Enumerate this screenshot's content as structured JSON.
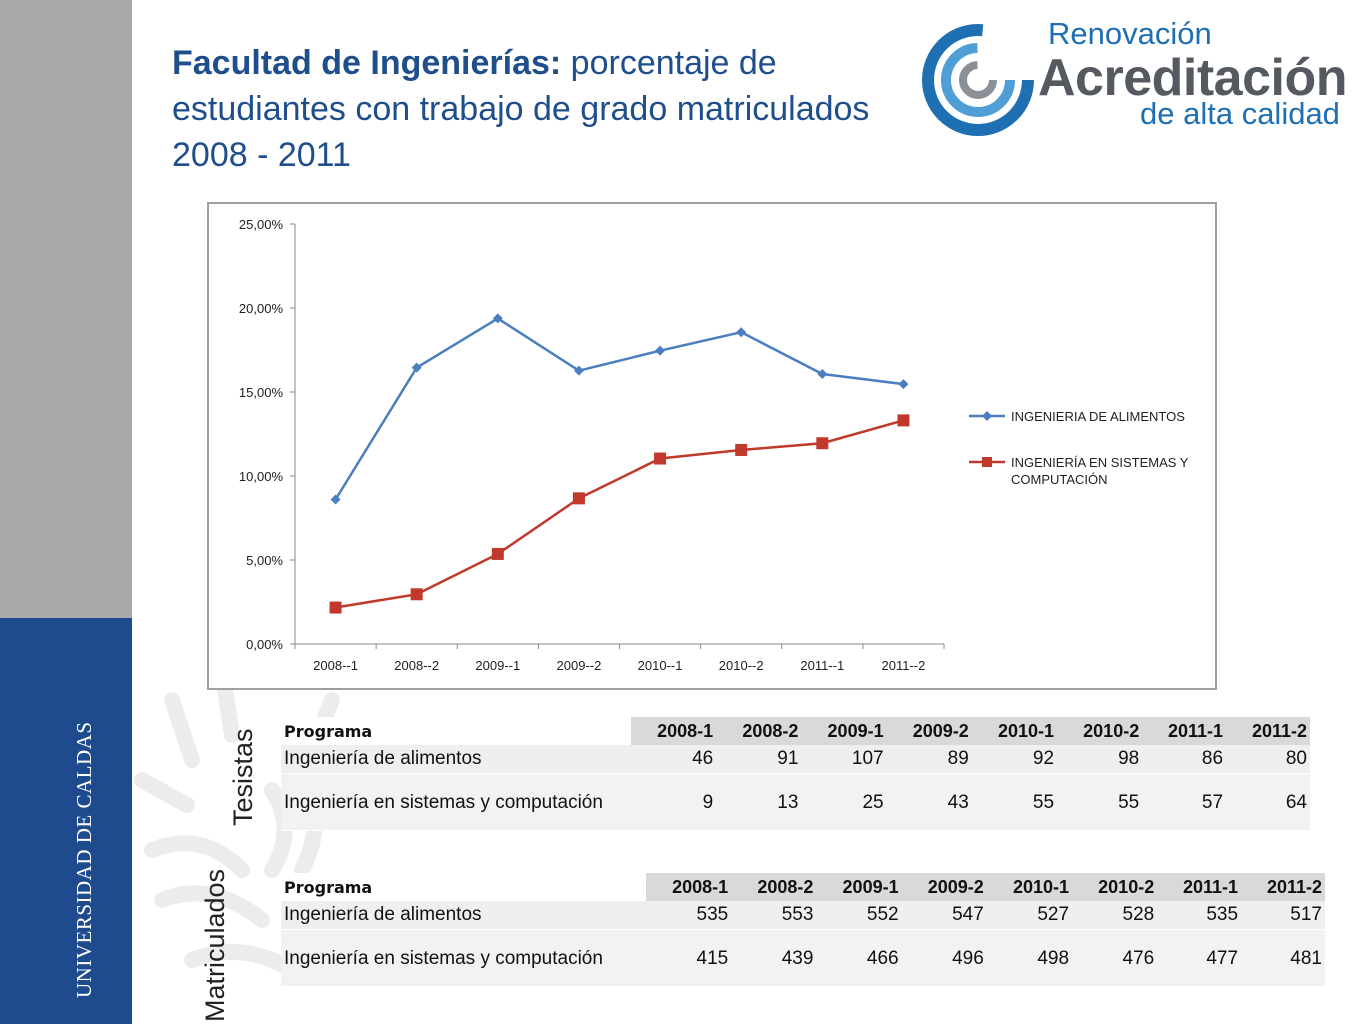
{
  "sidebar": {
    "institution": "UNIVERSIDAD DE CALDAS"
  },
  "title": {
    "bold": "Facultad de Ingenierías:",
    "rest": "porcentaje de estudiantes con trabajo de grado matriculados 2008 - 2011"
  },
  "logo": {
    "line1": "Renovación",
    "line2": "Acreditación",
    "line3": "de alta calidad"
  },
  "colors": {
    "brand_blue": "#1e4a8e",
    "series1": "#4a7ebf",
    "series2": "#c0392b",
    "sidebar_gray": "#a9a9ab"
  },
  "chart_data": {
    "type": "line",
    "title": "",
    "xlabel": "",
    "ylabel": "",
    "categories": [
      "2008--1",
      "2008--2",
      "2009--1",
      "2009--2",
      "2010--1",
      "2010--2",
      "2011--1",
      "2011--2"
    ],
    "y_ticks": [
      "0,00%",
      "5,00%",
      "10,00%",
      "15,00%",
      "20,00%",
      "25,00%"
    ],
    "ylim": [
      0,
      25
    ],
    "grid": false,
    "legend_position": "right",
    "series": [
      {
        "name": "INGENIERIA DE ALIMENTOS",
        "marker": "diamond",
        "values": [
          8.6,
          16.45,
          19.38,
          16.27,
          17.46,
          18.56,
          16.07,
          15.47
        ]
      },
      {
        "name": "INGENIERÍA EN SISTEMAS Y COMPUTACIÓN",
        "marker": "square",
        "values": [
          2.17,
          2.96,
          5.36,
          8.67,
          11.04,
          11.55,
          11.95,
          13.31
        ]
      }
    ]
  },
  "tables": {
    "tesistas": {
      "side_label": "Tesistas",
      "headers": [
        "Programa",
        "2008-1",
        "2008-2",
        "2009-1",
        "2009-2",
        "2010-1",
        "2010-2",
        "2011-1",
        "2011-2"
      ],
      "rows": [
        [
          "Ingeniería de alimentos",
          "46",
          "91",
          "107",
          "89",
          "92",
          "98",
          "86",
          "80"
        ],
        [
          "Ingeniería en sistemas y computación",
          "9",
          "13",
          "25",
          "43",
          "55",
          "55",
          "57",
          "64"
        ]
      ]
    },
    "matriculados": {
      "side_label": "Matriculados",
      "headers": [
        "Programa",
        "2008-1",
        "2008-2",
        "2009-1",
        "2009-2",
        "2010-1",
        "2010-2",
        "2011-1",
        "2011-2"
      ],
      "rows": [
        [
          "Ingeniería de alimentos",
          "535",
          "553",
          "552",
          "547",
          "527",
          "528",
          "535",
          "517"
        ],
        [
          "Ingeniería en sistemas y computación",
          "415",
          "439",
          "466",
          "496",
          "498",
          "476",
          "477",
          "481"
        ]
      ]
    }
  }
}
